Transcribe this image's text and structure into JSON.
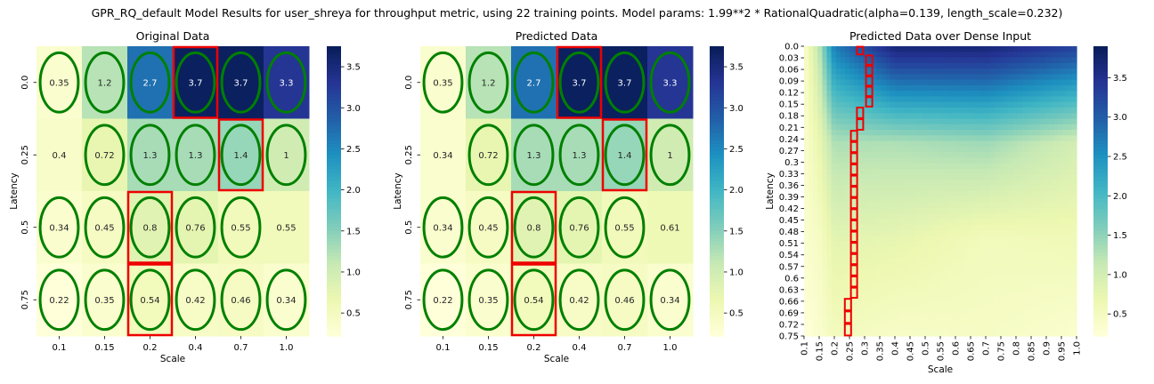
{
  "figure": {
    "suptitle": "GPR_RQ_default Model Results for user_shreya for throughput metric, using 22 training points. Model params: 1.99**2 * RationalQuadratic(alpha=0.139, length_scale=0.232)"
  },
  "colormap": {
    "name": "YlGnBu",
    "stops": [
      "#ffffd9",
      "#edf8b1",
      "#c7e9b4",
      "#7fcdbb",
      "#41b6c4",
      "#1d91c0",
      "#225ea8",
      "#253494",
      "#081d58"
    ]
  },
  "marker_colors": {
    "ellipse": "#008000",
    "box": "#ee0000"
  },
  "chart_data": [
    {
      "type": "heatmap",
      "title": "Original Data",
      "xlabel": "Scale",
      "ylabel": "Latency",
      "x_ticks": [
        "0.1",
        "0.15",
        "0.2",
        "0.4",
        "0.7",
        "1.0"
      ],
      "y_ticks": [
        "0.0",
        "0.25",
        "0.5",
        "0.75"
      ],
      "values": [
        [
          0.35,
          1.2,
          2.7,
          3.7,
          3.7,
          3.3
        ],
        [
          0.4,
          0.72,
          1.3,
          1.3,
          1.4,
          1
        ],
        [
          0.34,
          0.45,
          0.8,
          0.76,
          0.55,
          0.55
        ],
        [
          0.22,
          0.35,
          0.54,
          0.42,
          0.46,
          0.34
        ]
      ],
      "training_points": [
        [
          0,
          0
        ],
        [
          0,
          1
        ],
        [
          0,
          2
        ],
        [
          0,
          3
        ],
        [
          0,
          4
        ],
        [
          0,
          5
        ],
        [
          1,
          1
        ],
        [
          1,
          2
        ],
        [
          1,
          3
        ],
        [
          1,
          4
        ],
        [
          1,
          5
        ],
        [
          2,
          0
        ],
        [
          2,
          1
        ],
        [
          2,
          2
        ],
        [
          2,
          3
        ],
        [
          2,
          4
        ],
        [
          3,
          0
        ],
        [
          3,
          1
        ],
        [
          3,
          2
        ],
        [
          3,
          3
        ],
        [
          3,
          4
        ],
        [
          3,
          5
        ]
      ],
      "highlight_cells": [
        [
          0,
          3
        ],
        [
          1,
          4
        ],
        [
          2,
          2
        ],
        [
          3,
          2
        ]
      ],
      "vmin": 0.22,
      "vmax": 3.75,
      "colorbar_ticks": [
        "0.5",
        "1.0",
        "1.5",
        "2.0",
        "2.5",
        "3.0",
        "3.5"
      ],
      "colorbar_values": [
        0.5,
        1.0,
        1.5,
        2.0,
        2.5,
        3.0,
        3.5
      ]
    },
    {
      "type": "heatmap",
      "title": "Predicted Data",
      "xlabel": "Scale",
      "ylabel": "Latency",
      "x_ticks": [
        "0.1",
        "0.15",
        "0.2",
        "0.4",
        "0.7",
        "1.0"
      ],
      "y_ticks": [
        "0.0",
        "0.25",
        "0.5",
        "0.75"
      ],
      "values": [
        [
          0.35,
          1.2,
          2.7,
          3.7,
          3.7,
          3.3
        ],
        [
          0.34,
          0.72,
          1.3,
          1.3,
          1.4,
          1
        ],
        [
          0.34,
          0.45,
          0.8,
          0.76,
          0.55,
          0.61
        ],
        [
          0.22,
          0.35,
          0.54,
          0.42,
          0.46,
          0.34
        ]
      ],
      "training_points": [
        [
          0,
          0
        ],
        [
          0,
          1
        ],
        [
          0,
          2
        ],
        [
          0,
          3
        ],
        [
          0,
          4
        ],
        [
          0,
          5
        ],
        [
          1,
          1
        ],
        [
          1,
          2
        ],
        [
          1,
          3
        ],
        [
          1,
          4
        ],
        [
          1,
          5
        ],
        [
          2,
          0
        ],
        [
          2,
          1
        ],
        [
          2,
          2
        ],
        [
          2,
          3
        ],
        [
          2,
          4
        ],
        [
          3,
          0
        ],
        [
          3,
          1
        ],
        [
          3,
          2
        ],
        [
          3,
          3
        ],
        [
          3,
          4
        ],
        [
          3,
          5
        ]
      ],
      "highlight_cells": [
        [
          0,
          3
        ],
        [
          1,
          4
        ],
        [
          2,
          2
        ],
        [
          3,
          2
        ]
      ],
      "vmin": 0.22,
      "vmax": 3.75,
      "colorbar_ticks": [
        "0.5",
        "1.0",
        "1.5",
        "2.0",
        "2.5",
        "3.0",
        "3.5"
      ],
      "colorbar_values": [
        0.5,
        1.0,
        1.5,
        2.0,
        2.5,
        3.0,
        3.5
      ]
    },
    {
      "type": "heatmap",
      "title": "Predicted Data over Dense Input",
      "xlabel": "Scale",
      "ylabel": "Latency",
      "x_ticks": [
        "0.1",
        "0.15",
        "0.2",
        "0.25",
        "0.3",
        "0.35",
        "0.4",
        "0.45",
        "0.5",
        "0.55",
        "0.6",
        "0.65",
        "0.7",
        "0.75",
        "0.8",
        "0.85",
        "0.9",
        "0.95",
        "1.0"
      ],
      "y_ticks": [
        "0.0",
        "0.03",
        "0.06",
        "0.09",
        "0.12",
        "0.15",
        "0.18",
        "0.21",
        "0.24",
        "0.27",
        "0.3",
        "0.33",
        "0.36",
        "0.39",
        "0.42",
        "0.45",
        "0.48",
        "0.51",
        "0.54",
        "0.57",
        "0.6",
        "0.63",
        "0.66",
        "0.69",
        "0.72",
        "0.75"
      ],
      "x_range": [
        0.1,
        1.0
      ],
      "y_range": [
        0.0,
        0.75
      ],
      "grid_cols": 60,
      "grid_rows": 52,
      "vmin": 0.22,
      "vmax": 3.9,
      "colorbar_ticks": [
        "0.5",
        "1.0",
        "1.5",
        "2.0",
        "2.5",
        "3.0",
        "3.5"
      ],
      "colorbar_values": [
        0.5,
        1.0,
        1.5,
        2.0,
        2.5,
        3.0,
        3.5
      ],
      "optimum_path": [
        {
          "latency": [
            0.0,
            0.0225
          ],
          "scale": 0.285
        },
        {
          "latency": [
            0.0225,
            0.1575
          ],
          "scale": 0.315
        },
        {
          "latency": [
            0.1575,
            0.2175
          ],
          "scale": 0.285
        },
        {
          "latency": [
            0.2175,
            0.6525
          ],
          "scale": 0.265
        },
        {
          "latency": [
            0.6525,
            0.75
          ],
          "scale": 0.245
        }
      ]
    }
  ]
}
